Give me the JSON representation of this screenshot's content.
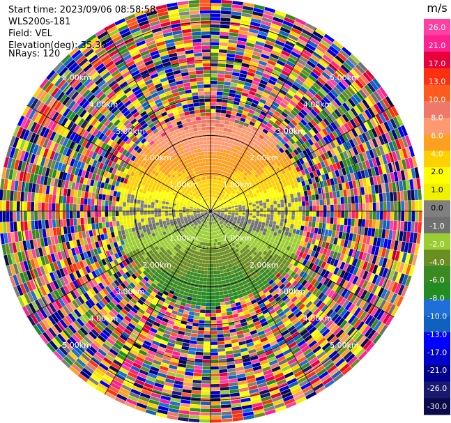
{
  "header": {
    "start_time": "Start time: 2023/09/06 08:58:58",
    "instrument": "WLS200s-181",
    "field": "Field: VEL",
    "elevation": "Elevation(deg): 35.30",
    "nrays": "NRays: 120"
  },
  "chart_data": {
    "type": "heatmap",
    "projection": "polar PPI",
    "field": "VEL",
    "units": "m/s",
    "elevation_deg": 35.3,
    "n_rays": 120,
    "range_rings_km": [
      1.0,
      2.0,
      3.0,
      4.0,
      5.0
    ],
    "range_ring_labels": [
      "1.00km",
      "2.00km",
      "3.00km",
      "4.00km",
      "5.00km"
    ],
    "max_range_km": 5.6,
    "colorbar": {
      "unit_label": "m/s",
      "tick_labels": [
        "26.0",
        "21.0",
        "17.0",
        "13.0",
        "10.0",
        "8.0",
        "6.0",
        "4.0",
        "2.0",
        "1.0",
        "0.0",
        "-1.0",
        "-2.0",
        "-4.0",
        "-6.0",
        "-8.0",
        "-10.0",
        "-13.0",
        "-17.0",
        "-21.0",
        "-26.0",
        "-30.0"
      ],
      "colors": [
        "#ff40a0",
        "#ff2090",
        "#e8003a",
        "#ff3010",
        "#ff5a20",
        "#f07868",
        "#ff9a70",
        "#ffa020",
        "#ffd000",
        "#ffff00",
        "#f0f000",
        "#808080",
        "#707070",
        "#9acd32",
        "#6b8e23",
        "#3a8a22",
        "#228b22",
        "#1e6fd8",
        "#1060c0",
        "#0000ff",
        "#0000cd",
        "#00008b",
        "#191970",
        "#0a0a4a"
      ]
    },
    "ray_pattern": {
      "upper_half": "positive velocities (warm colors) out to ~2.2 km",
      "lower_half": "negative velocities (green/blue) out to ~2.2 km",
      "outer": "noisy, random colors beyond ~2.5 km"
    }
  }
}
